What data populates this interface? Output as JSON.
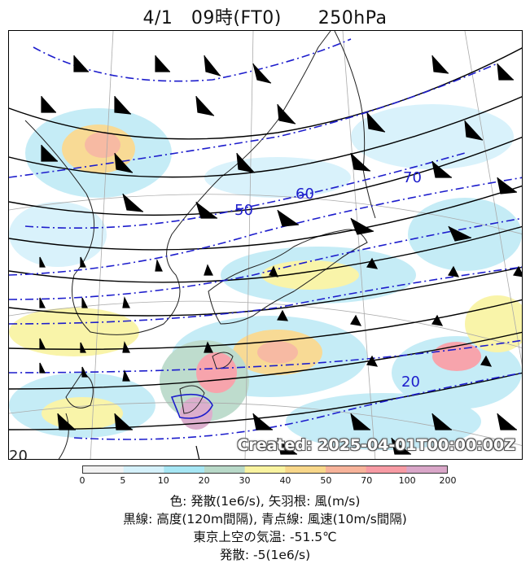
{
  "header": {
    "title": "4/1　09時(FT0)　　250hPa"
  },
  "map": {
    "stamp": "Created: 2025-04-01T00:00:00Z",
    "contour_labels": {
      "wind_50": "50",
      "wind_60": "60",
      "wind_70": "70",
      "wind_20": "20",
      "edge_20": "20"
    }
  },
  "colorbar": {
    "ticks": [
      "0",
      "5",
      "10",
      "20",
      "30",
      "40",
      "50",
      "70",
      "100",
      "200"
    ],
    "colors": [
      "#f2f2f2",
      "#d5f1fb",
      "#a6e6f4",
      "#b8d9c8",
      "#f9f3a0",
      "#f8d78a",
      "#f7b39a",
      "#f79ba4",
      "#d9a6c8"
    ]
  },
  "legend": {
    "line1": "色: 発散(1e6/s), 矢羽根: 風(m/s)",
    "line2": "黒線: 高度(120m間隔), 青点線: 風速(10m/s間隔)",
    "line3": "東京上空の気温: -51.5℃",
    "line4": "発散: -5(1e6/s)"
  }
}
